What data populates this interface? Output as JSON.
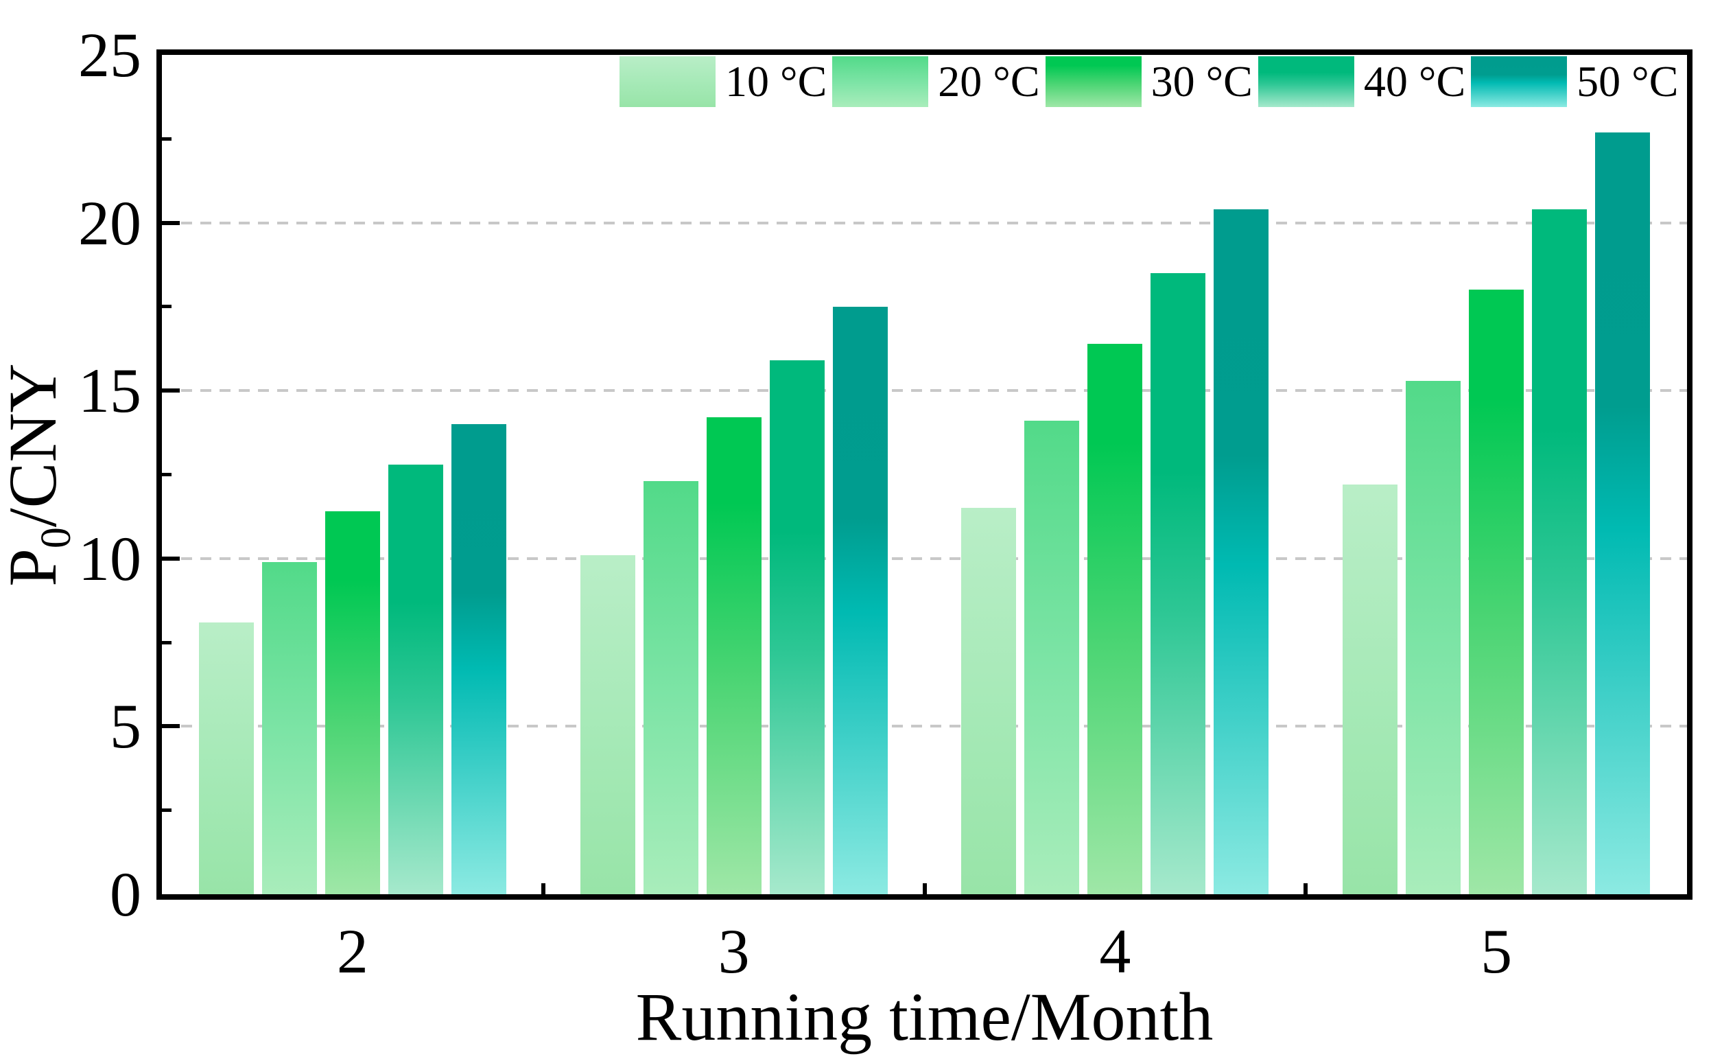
{
  "figure": {
    "background": "#ffffff",
    "axis_color": "#000000",
    "grid_color": "#c8c8c8"
  },
  "axes": {
    "x_title": "Running time/Month",
    "y_title_pre": "P",
    "y_title_sub": "0",
    "y_title_post": "/CNY"
  },
  "chart_data": {
    "type": "bar",
    "title": "",
    "xlabel": "Running time/Month",
    "ylabel": "P0/CNY",
    "categories": [
      "2",
      "3",
      "4",
      "5"
    ],
    "series": [
      {
        "name": "10 °C",
        "values": [
          8.1,
          10.1,
          11.5,
          12.2
        ],
        "gradient": [
          [
            "#b9eec7",
            0
          ],
          [
            "#a5e9b6",
            55
          ],
          [
            "#98e4a8",
            100
          ]
        ]
      },
      {
        "name": "20 °C",
        "values": [
          9.9,
          12.3,
          14.1,
          15.3
        ],
        "gradient": [
          [
            "#52da89",
            0
          ],
          [
            "#7de4a6",
            52
          ],
          [
            "#a9edbb",
            100
          ]
        ]
      },
      {
        "name": "30 °C",
        "values": [
          11.4,
          14.2,
          16.4,
          18.0
        ],
        "gradient": [
          [
            "#00c853",
            0
          ],
          [
            "#00c853",
            18
          ],
          [
            "#4cd574",
            55
          ],
          [
            "#9fe7a7",
            100
          ]
        ]
      },
      {
        "name": "40 °C",
        "values": [
          12.8,
          15.9,
          18.5,
          20.4
        ],
        "gradient": [
          [
            "#00b97c",
            0
          ],
          [
            "#00b97c",
            32
          ],
          [
            "#2ec795",
            55
          ],
          [
            "#a6e9cc",
            100
          ]
        ]
      },
      {
        "name": "50 °C",
        "values": [
          14.0,
          17.5,
          20.4,
          22.7
        ],
        "gradient": [
          [
            "#009c8e",
            0
          ],
          [
            "#009d8f",
            36
          ],
          [
            "#00bab2",
            52
          ],
          [
            "#8ceae2",
            100
          ]
        ]
      }
    ],
    "ylim": [
      0,
      25
    ],
    "yticks": [
      0,
      5,
      10,
      15,
      20,
      25
    ],
    "y_minor_step": 2.5,
    "grid": "horizontal dashed at major y ticks",
    "legend_position": "top inside, horizontal row"
  }
}
